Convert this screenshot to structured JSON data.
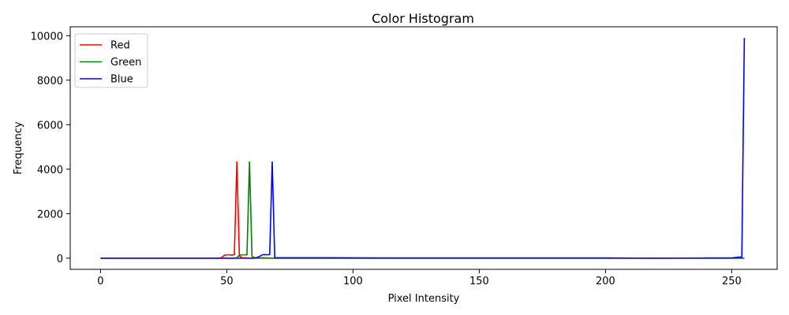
{
  "chart_data": {
    "type": "line",
    "title": "Color Histogram",
    "xlabel": "Pixel Intensity",
    "ylabel": "Frequency",
    "xlim": [
      -12,
      268
    ],
    "ylim": [
      -500,
      10400
    ],
    "xticks": [
      0,
      50,
      100,
      150,
      200,
      250
    ],
    "yticks": [
      0,
      2000,
      4000,
      6000,
      8000,
      10000
    ],
    "grid": false,
    "legend_position": "top-left",
    "series": [
      {
        "name": "Red",
        "color": "#ff0000",
        "points": [
          [
            0,
            0
          ],
          [
            47,
            0
          ],
          [
            48,
            30
          ],
          [
            49,
            130
          ],
          [
            50,
            150
          ],
          [
            51,
            150
          ],
          [
            52,
            140
          ],
          [
            53,
            160
          ],
          [
            54,
            4330
          ],
          [
            55,
            100
          ],
          [
            56,
            20
          ],
          [
            60,
            0
          ],
          [
            70,
            0
          ],
          [
            255,
            0
          ]
        ]
      },
      {
        "name": "Green",
        "color": "#008000",
        "points": [
          [
            0,
            0
          ],
          [
            53,
            0
          ],
          [
            54,
            20
          ],
          [
            55,
            130
          ],
          [
            56,
            150
          ],
          [
            57,
            150
          ],
          [
            58,
            150
          ],
          [
            59,
            4330
          ],
          [
            60,
            80
          ],
          [
            61,
            20
          ],
          [
            62,
            0
          ],
          [
            64,
            20
          ],
          [
            66,
            10
          ],
          [
            68,
            0
          ],
          [
            255,
            0
          ]
        ]
      },
      {
        "name": "Blue",
        "color": "#0000ff",
        "points": [
          [
            0,
            0
          ],
          [
            60,
            0
          ],
          [
            61,
            10
          ],
          [
            62,
            30
          ],
          [
            63,
            80
          ],
          [
            64,
            150
          ],
          [
            65,
            160
          ],
          [
            66,
            150
          ],
          [
            67,
            160
          ],
          [
            68,
            4330
          ],
          [
            69,
            20
          ],
          [
            90,
            20
          ],
          [
            110,
            10
          ],
          [
            150,
            10
          ],
          [
            200,
            10
          ],
          [
            220,
            0
          ],
          [
            240,
            10
          ],
          [
            250,
            10
          ],
          [
            253,
            50
          ],
          [
            254,
            50
          ],
          [
            255,
            9900
          ]
        ]
      }
    ]
  }
}
